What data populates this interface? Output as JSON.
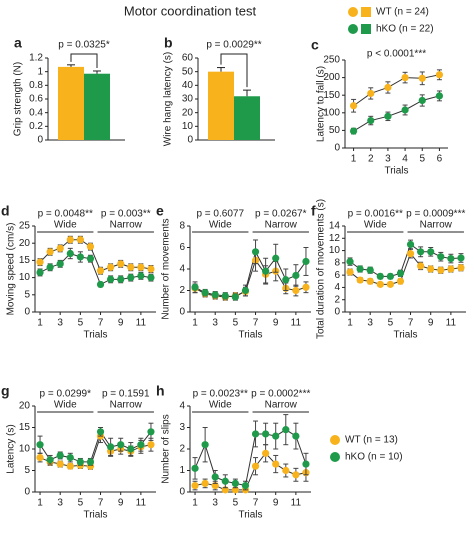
{
  "title": "Motor coordination test",
  "chart_data": [
    {
      "type": "bar",
      "panel": "a",
      "annotation": "p = 0.0325*",
      "ylabel": "Grip strength (N)",
      "ylim": [
        0,
        1.2
      ],
      "yticks": [
        0,
        0.2,
        0.4,
        0.6,
        0.8,
        1,
        1.2
      ],
      "series": [
        {
          "name": "WT (n = 24)",
          "color": "#f7b21c",
          "values": [
            1.07
          ],
          "errors": [
            0.03
          ]
        },
        {
          "name": "hKO (n = 22)",
          "color": "#1e9a4a",
          "values": [
            0.97
          ],
          "errors": [
            0.04
          ]
        }
      ]
    },
    {
      "type": "bar",
      "panel": "b",
      "annotation": "p = 0.0029**",
      "ylabel": "Wire hang latency (s)",
      "ylim": [
        0,
        60
      ],
      "yticks": [
        0,
        10,
        20,
        30,
        40,
        50,
        60
      ],
      "series": [
        {
          "color": "#f7b21c",
          "values": [
            50
          ],
          "errors": [
            3
          ]
        },
        {
          "color": "#1e9a4a",
          "values": [
            32
          ],
          "errors": [
            4.5
          ]
        }
      ]
    },
    {
      "type": "line",
      "panel": "c",
      "annotation": "p < 0.0001***",
      "ylabel": "Latency to fall (s)",
      "xlabel": "Trials",
      "x": [
        1,
        2,
        3,
        4,
        5,
        6
      ],
      "xlim": [
        0.5,
        6.5
      ],
      "xticks": [
        1,
        2,
        3,
        4,
        5,
        6
      ],
      "ylim": [
        0,
        250
      ],
      "yticks": [
        0,
        50,
        100,
        150,
        200,
        250
      ],
      "series": [
        {
          "color": "#f7b21c",
          "values": [
            120,
            155,
            172,
            200,
            198,
            208
          ],
          "errors": [
            18,
            16,
            16,
            15,
            18,
            14
          ]
        },
        {
          "color": "#1e9a4a",
          "values": [
            48,
            78,
            90,
            108,
            135,
            148
          ],
          "errors": [
            8,
            12,
            12,
            14,
            16,
            14
          ]
        }
      ]
    },
    {
      "type": "line",
      "panel": "d",
      "ylabel": "Moving speed (cm/s)",
      "xlabel": "Trials",
      "groups": [
        {
          "label": "Wide",
          "p": "p = 0.0048**"
        },
        {
          "label": "Narrow",
          "p": "p = 0.003**"
        }
      ],
      "x": [
        1,
        2,
        3,
        4,
        5,
        6,
        7,
        8,
        9,
        10,
        11,
        12
      ],
      "xlim": [
        0.5,
        12.5
      ],
      "xticks": [
        1,
        3,
        5,
        7,
        9,
        11
      ],
      "ylim": [
        0,
        25
      ],
      "yticks": [
        0,
        5,
        10,
        15,
        20,
        25
      ],
      "series": [
        {
          "name": "WT (n = 13)",
          "color": "#f7b21c",
          "values": [
            14.5,
            17.5,
            18.5,
            21,
            21,
            19,
            12,
            13,
            14,
            13,
            13,
            12.5
          ],
          "errors": [
            1,
            1,
            1,
            1,
            1,
            1,
            1,
            1,
            1,
            1,
            1,
            1
          ]
        },
        {
          "name": "hKO (n = 10)",
          "color": "#1e9a4a",
          "values": [
            11.5,
            13,
            14,
            17,
            16,
            15.5,
            8,
            9.5,
            9.5,
            10,
            10.5,
            10
          ],
          "errors": [
            1,
            1,
            1,
            1.5,
            1.5,
            1,
            0.7,
            1,
            1,
            1,
            1,
            1
          ]
        }
      ]
    },
    {
      "type": "line",
      "panel": "e",
      "ylabel": "Number of movements",
      "xlabel": "Trials",
      "groups": [
        {
          "label": "Wide",
          "p": "p = 0.6077"
        },
        {
          "label": "Narrow",
          "p": "p = 0.0267*"
        }
      ],
      "x": [
        1,
        2,
        3,
        4,
        5,
        6,
        7,
        8,
        9,
        10,
        11,
        12
      ],
      "xlim": [
        0.5,
        12.5
      ],
      "xticks": [
        1,
        3,
        5,
        7,
        9,
        11
      ],
      "ylim": [
        0,
        8
      ],
      "yticks": [
        0,
        2,
        4,
        6,
        8
      ],
      "series": [
        {
          "color": "#f7b21c",
          "values": [
            2.2,
            1.7,
            1.5,
            1.4,
            1.5,
            1.9,
            4.8,
            3.5,
            3.8,
            2.2,
            2,
            2.3
          ],
          "errors": [
            0.4,
            0.3,
            0.3,
            0.3,
            0.3,
            0.4,
            1,
            0.8,
            0.9,
            0.5,
            0.5,
            0.5
          ]
        },
        {
          "color": "#1e9a4a",
          "values": [
            2.3,
            1.8,
            1.6,
            1.5,
            1.4,
            2,
            5.6,
            3.8,
            5,
            3,
            3.4,
            4.7
          ],
          "errors": [
            0.5,
            0.3,
            0.3,
            0.3,
            0.3,
            0.5,
            1.1,
            1.2,
            1.3,
            1,
            1,
            1.3
          ]
        }
      ]
    },
    {
      "type": "line",
      "panel": "f",
      "ylabel": "Total duration of movements (s)",
      "xlabel": "Trials",
      "groups": [
        {
          "label": "Wide",
          "p": "p = 0.0016**"
        },
        {
          "label": "Narrow",
          "p": "p = 0.0009***"
        }
      ],
      "x": [
        1,
        2,
        3,
        4,
        5,
        6,
        7,
        8,
        9,
        10,
        11,
        12
      ],
      "xlim": [
        0.5,
        12.5
      ],
      "xticks": [
        1,
        3,
        5,
        7,
        9,
        11
      ],
      "ylim": [
        0,
        14
      ],
      "yticks": [
        0,
        2,
        4,
        6,
        8,
        10,
        12,
        14
      ],
      "series": [
        {
          "color": "#f7b21c",
          "values": [
            6.5,
            5.2,
            5,
            4.5,
            4.5,
            5,
            9.5,
            7.5,
            7,
            6.8,
            7,
            7.2
          ],
          "errors": [
            0.5,
            0.4,
            0.4,
            0.3,
            0.3,
            0.4,
            0.7,
            0.6,
            0.5,
            0.5,
            0.5,
            0.5
          ]
        },
        {
          "color": "#1e9a4a",
          "values": [
            8.2,
            7,
            6.8,
            5.8,
            5.8,
            6.3,
            11,
            9.8,
            9.8,
            9,
            8.7,
            8.8
          ],
          "errors": [
            0.6,
            0.5,
            0.5,
            0.4,
            0.4,
            0.5,
            0.7,
            0.8,
            0.7,
            0.7,
            0.7,
            0.7
          ]
        }
      ]
    },
    {
      "type": "line",
      "panel": "g",
      "ylabel": "Latency (s)",
      "xlabel": "Trials",
      "groups": [
        {
          "label": "Wide",
          "p": "p = 0.0299*"
        },
        {
          "label": "Narrow",
          "p": "p = 0.1591"
        }
      ],
      "x": [
        1,
        2,
        3,
        4,
        5,
        6,
        7,
        8,
        9,
        10,
        11,
        12
      ],
      "xlim": [
        0.5,
        12.5
      ],
      "xticks": [
        1,
        3,
        5,
        7,
        9,
        11
      ],
      "ylim": [
        0,
        20
      ],
      "yticks": [
        0,
        5,
        10,
        15,
        20
      ],
      "series": [
        {
          "color": "#f7b21c",
          "values": [
            8,
            7,
            6.5,
            6,
            6.2,
            6,
            13,
            9.5,
            10,
            9.5,
            10.5,
            11
          ],
          "errors": [
            1,
            0.8,
            0.7,
            0.6,
            0.7,
            0.7,
            1.5,
            1.2,
            1.2,
            1.2,
            1.5,
            1.5
          ]
        },
        {
          "color": "#1e9a4a",
          "values": [
            11,
            7.5,
            8.5,
            8,
            7,
            7,
            14,
            10.5,
            11,
            10,
            11,
            14
          ],
          "errors": [
            2,
            1,
            0.8,
            1,
            0.8,
            0.8,
            1,
            2,
            1.5,
            1.5,
            1.5,
            2
          ]
        }
      ]
    },
    {
      "type": "line",
      "panel": "h",
      "ylabel": "Number of slips",
      "xlabel": "Trials",
      "groups": [
        {
          "label": "Wide",
          "p": "p = 0.0023**"
        },
        {
          "label": "Narrow",
          "p": "p = 0.0002***"
        }
      ],
      "x": [
        1,
        2,
        3,
        4,
        5,
        6,
        7,
        8,
        9,
        10,
        11,
        12
      ],
      "xlim": [
        0.5,
        12.5
      ],
      "xticks": [
        1,
        3,
        5,
        7,
        9,
        11
      ],
      "ylim": [
        0,
        4
      ],
      "yticks": [
        0,
        1,
        2,
        3,
        4
      ],
      "series": [
        {
          "color": "#f7b21c",
          "values": [
            0.3,
            0.4,
            0.3,
            0.1,
            0.1,
            0.1,
            1.2,
            1.8,
            1.3,
            1,
            0.8,
            0.9
          ],
          "errors": [
            0.2,
            0.2,
            0.2,
            0.1,
            0.1,
            0.1,
            0.4,
            0.4,
            0.4,
            0.3,
            0.3,
            0.4
          ]
        },
        {
          "color": "#1e9a4a",
          "values": [
            1.1,
            2.2,
            0.7,
            0.5,
            0.4,
            0.3,
            2.7,
            2.7,
            2.6,
            2.9,
            2.6,
            1.3
          ],
          "errors": [
            0.5,
            0.8,
            0.3,
            0.3,
            0.2,
            0.2,
            0.6,
            0.5,
            0.6,
            0.7,
            0.6,
            0.5
          ]
        }
      ]
    }
  ]
}
